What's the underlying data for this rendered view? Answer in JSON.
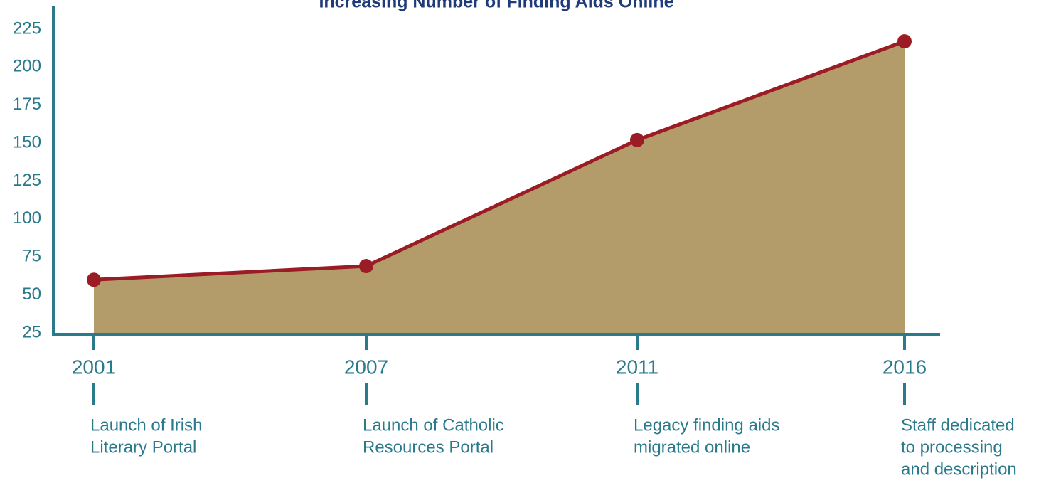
{
  "chart_data": {
    "type": "area",
    "title": "Increasing Number of Finding Aids Online",
    "categories": [
      "2001",
      "2007",
      "2011",
      "2016"
    ],
    "values": [
      60,
      69,
      152,
      217
    ],
    "annotations": [
      [
        "Launch of Irish",
        "Literary Portal"
      ],
      [
        "Launch of Catholic",
        "Resources Portal"
      ],
      [
        "Legacy finding aids",
        "migrated online"
      ],
      [
        "Staff dedicated",
        "to processing",
        "and description"
      ]
    ],
    "fill_color": "#b39c6a",
    "line_color": "#9b1c24",
    "axis_color": "#2a7a8c",
    "ylim": [
      25,
      225
    ],
    "yticks": [
      25,
      50,
      75,
      100,
      125,
      150,
      175,
      200,
      225
    ]
  }
}
